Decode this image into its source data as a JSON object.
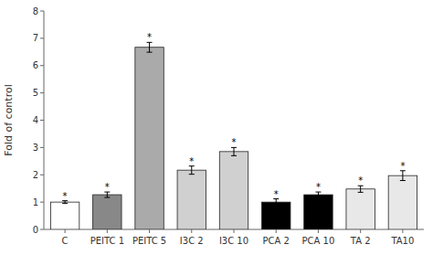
{
  "chart_data": {
    "type": "bar",
    "categories": [
      "C",
      "PEITC 1",
      "PEITC 5",
      "I3C 2",
      "I3C 10",
      "PCA 2",
      "PCA 10",
      "TA 2",
      "TA10"
    ],
    "values": [
      1.0,
      1.27,
      6.67,
      2.17,
      2.85,
      1.0,
      1.27,
      1.48,
      1.97
    ],
    "errors": [
      0.05,
      0.1,
      0.18,
      0.15,
      0.15,
      0.12,
      0.1,
      0.12,
      0.18
    ],
    "colors": [
      "white",
      "#888888",
      "#aaaaaa",
      "#d0d0d0",
      "#d0d0d0",
      "black",
      "black",
      "#e8e8e8",
      "#e8e8e8"
    ],
    "significance": [
      "*",
      "*",
      "*",
      "*",
      "*",
      "*",
      "*",
      "*",
      "*"
    ],
    "ylabel": "Fold of control",
    "ylim": [
      0,
      8
    ],
    "yticks": [
      0,
      1,
      2,
      3,
      4,
      5,
      6,
      7,
      8
    ],
    "grid": false
  }
}
